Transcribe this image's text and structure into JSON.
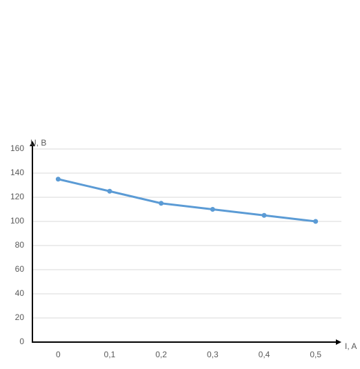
{
  "chart_data": {
    "type": "line",
    "x_label": "I, A",
    "y_label": "U, B",
    "categories": [
      "0",
      "0,1",
      "0,2",
      "0,3",
      "0,4",
      "0,5"
    ],
    "series": [
      {
        "name": "U",
        "color": "#5b9bd5",
        "values": [
          135,
          125,
          115,
          110,
          105,
          100
        ]
      }
    ],
    "ylim": [
      0,
      160
    ],
    "yticks": [
      0,
      20,
      40,
      60,
      80,
      100,
      120,
      140,
      160
    ],
    "grid": true
  }
}
